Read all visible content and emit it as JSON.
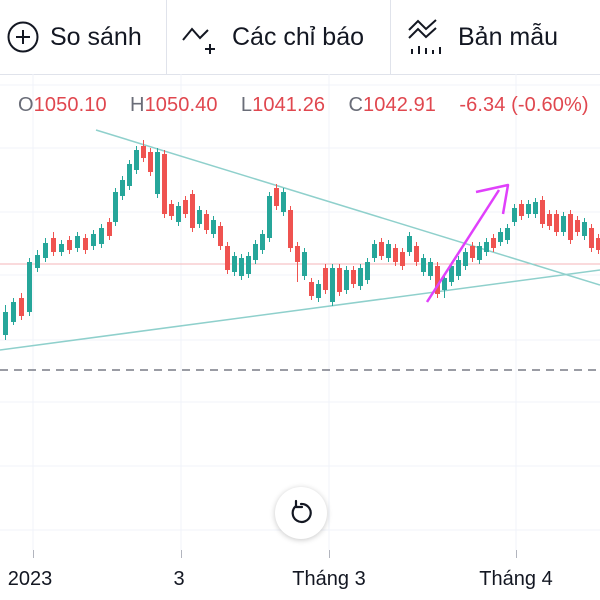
{
  "toolbar": {
    "compare_label": "So sánh",
    "indicators_label": "Các chỉ báo",
    "templates_label": "Bản mẫu"
  },
  "legend": {
    "open_prefix": "O",
    "open": "1050.10",
    "high_prefix": "H",
    "high": "1050.40",
    "low_prefix": "L",
    "low": "1041.26",
    "close_prefix": "C",
    "close": "1042.91",
    "change": "-6.34 (-0.60%)"
  },
  "colors": {
    "up": "#26a69a",
    "down": "#ef5350",
    "trendline": "#8fd0cc",
    "arrow": "#e040fb",
    "last_price_line": "#f4b6b8",
    "dashed_level": "#787b86"
  },
  "icons": {
    "compare": "plus-circle-icon",
    "indicators": "indicator-wave-icon",
    "templates": "template-bars-icon",
    "reset": "reset-rotate-icon"
  },
  "xaxis": {
    "labels": [
      "2023",
      "3",
      "Tháng 3",
      "Tháng 4"
    ]
  }
}
